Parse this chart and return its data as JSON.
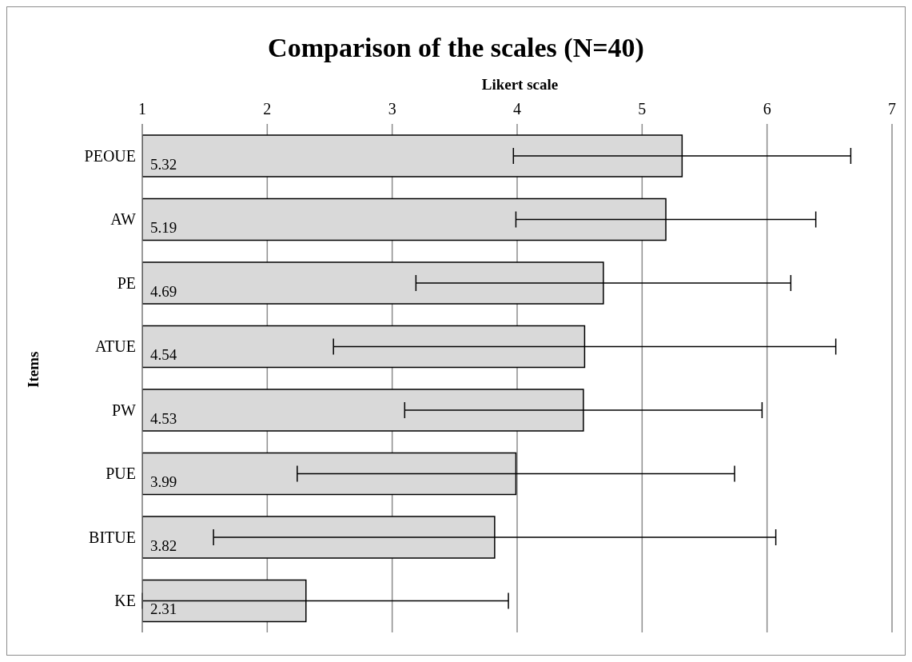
{
  "chart_data": {
    "type": "bar",
    "orientation": "horizontal",
    "title": "Comparison of the scales (N=40)",
    "xlabel": "Likert scale",
    "ylabel": "Items",
    "categories": [
      "PEOUE",
      "AW",
      "PE",
      "ATUE",
      "PW",
      "PUE",
      "BITUE",
      "KE"
    ],
    "values": [
      5.32,
      5.19,
      4.69,
      4.54,
      4.53,
      3.99,
      3.82,
      2.31
    ],
    "errors": [
      1.35,
      1.2,
      1.5,
      2.01,
      1.43,
      1.75,
      2.25,
      [
        1,
        3.93
      ]
    ],
    "color": "#d9d9d9",
    "xlim": [
      1,
      7
    ],
    "xticks": [
      1,
      2,
      3,
      4,
      5,
      6,
      7
    ],
    "grid": "x",
    "data_labels": true
  }
}
